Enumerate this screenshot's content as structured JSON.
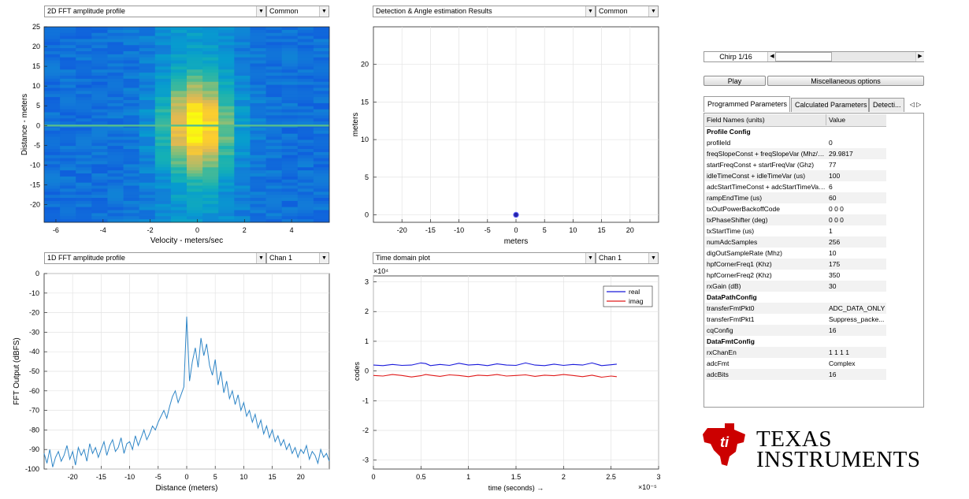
{
  "panels": {
    "p1": {
      "plot_select": "2D FFT amplitude profile",
      "mode_select": "Common"
    },
    "p2": {
      "plot_select": "Detection & Angle estimation Results",
      "mode_select": "Common"
    },
    "p3": {
      "plot_select": "1D FFT amplitude profile",
      "mode_select": "Chan 1"
    },
    "p4": {
      "plot_select": "Time domain plot",
      "mode_select": "Chan 1"
    }
  },
  "plot_2d_fft": {
    "xlabel": "Velocity - meters/sec",
    "ylabel": "Distance - meters",
    "xticks": [
      "-6",
      "-4",
      "-2",
      "0",
      "2",
      "4"
    ],
    "yticks": [
      "25",
      "20",
      "15",
      "10",
      "5",
      "0",
      "-5",
      "-10",
      "-15",
      "-20"
    ]
  },
  "chart_data": [
    {
      "type": "heatmap",
      "xlabel": "Velocity - meters/sec",
      "ylabel": "Distance - meters",
      "xlim": [
        -6.5,
        5.6
      ],
      "ylim": [
        -24.5,
        25
      ],
      "colormap": "parula",
      "peak": {
        "x": 0,
        "y": 0
      },
      "note_values": "amplitude concentrated around velocity 0, distance 0; bright horizontal line at distance 0"
    },
    {
      "type": "scatter",
      "xlabel": "meters",
      "ylabel": "meters",
      "xlim": [
        -25,
        25
      ],
      "ylim": [
        -1,
        25
      ],
      "xticks": [
        "-20",
        "-15",
        "-10",
        "-5",
        "0",
        "5",
        "10",
        "15",
        "20"
      ],
      "yticks": [
        "20",
        "15",
        "10",
        "5",
        "0"
      ],
      "points": [
        {
          "x": 0,
          "y": 0
        }
      ],
      "color": "#2323a8"
    },
    {
      "type": "line",
      "xlabel": "Distance (meters)",
      "ylabel": "FFT Output (dBFS)",
      "xlim": [
        -25,
        25
      ],
      "ylim": [
        -100,
        0
      ],
      "xticks": [
        "-20",
        "-15",
        "-10",
        "-5",
        "0",
        "5",
        "10",
        "15",
        "20"
      ],
      "yticks": [
        "0",
        "-10",
        "-20",
        "-30",
        "-40",
        "-50",
        "-60",
        "-70",
        "-80",
        "-90",
        "-100"
      ],
      "color": "#2f86c7",
      "x": [
        -25,
        -24.5,
        -24,
        -23.5,
        -23,
        -22.5,
        -22,
        -21.5,
        -21,
        -20.5,
        -20,
        -19.5,
        -19,
        -18.5,
        -18,
        -17.5,
        -17,
        -16.5,
        -16,
        -15.5,
        -15,
        -14.5,
        -14,
        -13.5,
        -13,
        -12.5,
        -12,
        -11.5,
        -11,
        -10.5,
        -10,
        -9.5,
        -9,
        -8.5,
        -8,
        -7.5,
        -7,
        -6.5,
        -6,
        -5.5,
        -5,
        -4.5,
        -4,
        -3.5,
        -3,
        -2.5,
        -2,
        -1.5,
        -1,
        -0.5,
        0,
        0.5,
        1,
        1.5,
        2,
        2.5,
        3,
        3.5,
        4,
        4.5,
        5,
        5.5,
        6,
        6.5,
        7,
        7.5,
        8,
        8.5,
        9,
        9.5,
        10,
        10.5,
        11,
        11.5,
        12,
        12.5,
        13,
        13.5,
        14,
        14.5,
        15,
        15.5,
        16,
        16.5,
        17,
        17.5,
        18,
        18.5,
        19,
        19.5,
        20,
        20.5,
        21,
        21.5,
        22,
        22.5,
        23,
        23.5,
        24,
        24.5,
        25
      ],
      "y": [
        -92,
        -97,
        -90,
        -99,
        -94,
        -91,
        -96,
        -93,
        -88,
        -95,
        -91,
        -98,
        -89,
        -93,
        -90,
        -96,
        -87,
        -92,
        -89,
        -94,
        -90,
        -86,
        -93,
        -88,
        -85,
        -91,
        -89,
        -84,
        -92,
        -87,
        -86,
        -90,
        -83,
        -88,
        -84,
        -80,
        -85,
        -82,
        -78,
        -80,
        -76,
        -73,
        -70,
        -74,
        -68,
        -63,
        -60,
        -66,
        -62,
        -58,
        -22,
        -55,
        -45,
        -38,
        -48,
        -33,
        -42,
        -36,
        -47,
        -52,
        -44,
        -57,
        -50,
        -61,
        -55,
        -64,
        -60,
        -67,
        -62,
        -70,
        -66,
        -73,
        -70,
        -76,
        -72,
        -79,
        -75,
        -82,
        -78,
        -84,
        -80,
        -86,
        -83,
        -88,
        -85,
        -90,
        -87,
        -92,
        -89,
        -94,
        -90,
        -92,
        -88,
        -95,
        -91,
        -93,
        -97,
        -90,
        -94,
        -92,
        -96
      ]
    },
    {
      "type": "line",
      "xlabel": "time  (seconds) →",
      "ylabel": "codes",
      "x_multiplier": "×10⁻⁵",
      "y_multiplier": "×10⁴",
      "xlim": [
        0,
        3
      ],
      "ylim": [
        -3.3,
        3.2
      ],
      "xticks": [
        "0",
        "0.5",
        "1",
        "1.5",
        "2",
        "2.5",
        "3"
      ],
      "yticks": [
        "3",
        "2",
        "1",
        "0",
        "-1",
        "-2",
        "-3"
      ],
      "x": [
        0,
        0.1,
        0.2,
        0.3,
        0.4,
        0.5,
        0.55,
        0.6,
        0.7,
        0.8,
        0.9,
        1.0,
        1.1,
        1.2,
        1.3,
        1.4,
        1.5,
        1.6,
        1.7,
        1.8,
        1.9,
        2.0,
        2.1,
        2.2,
        2.3,
        2.4,
        2.5,
        2.56
      ],
      "series": [
        {
          "name": "real",
          "color": "#1a1adb",
          "values": [
            0.2,
            0.18,
            0.22,
            0.19,
            0.2,
            0.27,
            0.25,
            0.18,
            0.22,
            0.19,
            0.26,
            0.2,
            0.22,
            0.18,
            0.24,
            0.2,
            0.19,
            0.27,
            0.2,
            0.18,
            0.23,
            0.19,
            0.22,
            0.2,
            0.27,
            0.18,
            0.21,
            0.23
          ]
        },
        {
          "name": "imag",
          "color": "#e01a1a",
          "values": [
            -0.15,
            -0.17,
            -0.12,
            -0.15,
            -0.2,
            -0.16,
            -0.12,
            -0.14,
            -0.18,
            -0.13,
            -0.15,
            -0.19,
            -0.14,
            -0.16,
            -0.12,
            -0.17,
            -0.15,
            -0.13,
            -0.18,
            -0.14,
            -0.16,
            -0.12,
            -0.15,
            -0.19,
            -0.14,
            -0.21,
            -0.17,
            -0.19
          ]
        }
      ],
      "legend": "top-right"
    }
  ],
  "chirp": {
    "label": "Chirp 1/16",
    "position": 0.0
  },
  "buttons": {
    "play": "Play",
    "misc": "Miscellaneous options"
  },
  "tabs": [
    "Programmed Parameters",
    "Calculated Parameters",
    "Detecti..."
  ],
  "table": {
    "headers": [
      "Field Names    (units)",
      "Value"
    ],
    "rows": [
      [
        "Profile Config",
        ""
      ],
      [
        "profileId",
        "0"
      ],
      [
        "freqSlopeConst + freqSlopeVar (Mhz/us)",
        "29.9817"
      ],
      [
        "startFreqConst + startFreqVar (Ghz)",
        "77"
      ],
      [
        "idleTimeConst + idleTimeVar (us)",
        "100"
      ],
      [
        "adcStartTimeConst + adcStartTimeVar ...",
        "6"
      ],
      [
        "rampEndTime (us)",
        "60"
      ],
      [
        "txOutPowerBackoffCode",
        "0 0 0"
      ],
      [
        "txPhaseShifter (deg)",
        "0 0 0"
      ],
      [
        "txStartTime (us)",
        "1"
      ],
      [
        "numAdcSamples",
        "256"
      ],
      [
        "digOutSampleRate (Mhz)",
        "10"
      ],
      [
        "hpfCornerFreq1 (Khz)",
        "175"
      ],
      [
        "hpfCornerFreq2 (Khz)",
        "350"
      ],
      [
        "rxGain (dB)",
        "30"
      ],
      [
        "DataPathConfig",
        ""
      ],
      [
        "transferFmtPkt0",
        "ADC_DATA_ONLY"
      ],
      [
        "transferFmtPkt1",
        "Suppress_packe..."
      ],
      [
        "cqConfig",
        "16"
      ],
      [
        "DataFmtConfig",
        ""
      ],
      [
        "rxChanEn",
        "1 1 1 1"
      ],
      [
        "adcFmt",
        "Complex"
      ],
      [
        "adcBits",
        "16"
      ]
    ],
    "section_rows": [
      0,
      15,
      19
    ]
  },
  "logo": {
    "line1": "TEXAS",
    "line2": "INSTRUMENTS",
    "color": "#cc0000"
  },
  "colors": {
    "plot_blue": "#2f86c7",
    "marker": "#2323a8",
    "heat_low": "#352a87",
    "heat_high": "#f9fb0e"
  }
}
